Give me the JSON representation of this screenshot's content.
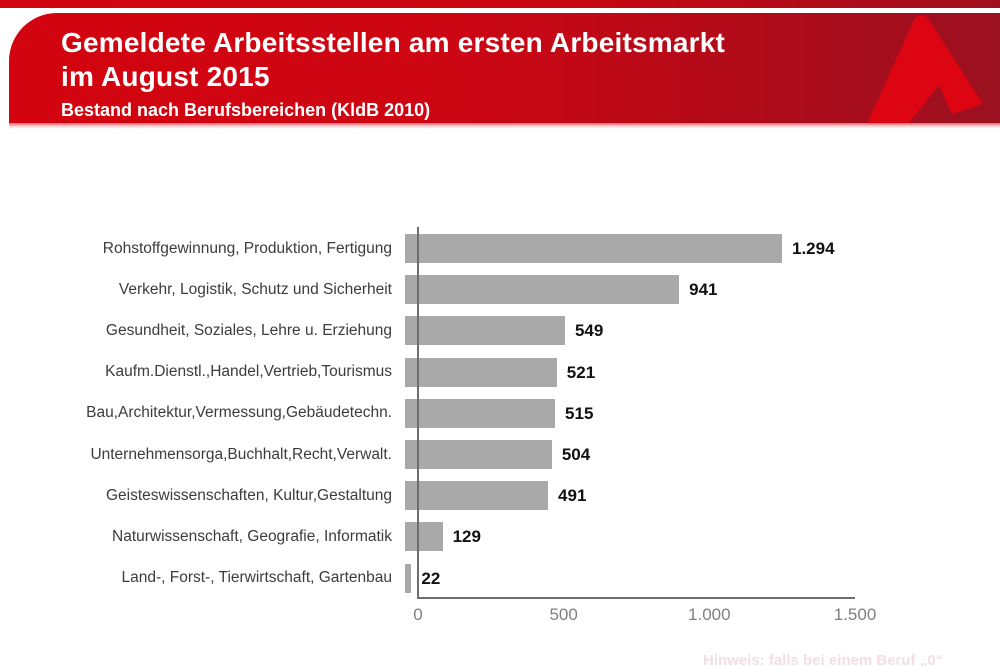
{
  "header": {
    "title_line1": "Gemeldete Arbeitsstellen am ersten Arbeitsmarkt",
    "title_line2": "im August 2015",
    "subtitle": "Bestand nach Berufsbereichen (KldB 2010)"
  },
  "footer_note": "Hinweis: falls bei einem Beruf „0“",
  "colors": {
    "banner_red_left": "#d2040f",
    "banner_red_right": "#9b1020",
    "logo_red": "#dd0512",
    "bar_gray": "#a9a9a9",
    "axis_gray": "#6e6e6e",
    "tick_gray": "#7f7f7f"
  },
  "chart_data": {
    "type": "bar",
    "orientation": "horizontal",
    "title": "Gemeldete Arbeitsstellen am ersten Arbeitsmarkt im August 2015",
    "subtitle": "Bestand nach Berufsbereichen (KldB 2010)",
    "categories": [
      "Rohstoffgewinnung, Produktion, Fertigung",
      "Verkehr, Logistik, Schutz und Sicherheit",
      "Gesundheit, Soziales, Lehre u. Erziehung",
      "Kaufm.Dienstl.,Handel,Vertrieb,Tourismus",
      "Bau,Architektur,Vermessung,Gebäudetechn.",
      "Unternehmensorga,Buchhalt,Recht,Verwalt.",
      "Geisteswissenschaften, Kultur,Gestaltung",
      "Naturwissenschaft, Geografie, Informatik",
      "Land-, Forst-, Tierwirtschaft, Gartenbau"
    ],
    "values": [
      1294,
      941,
      549,
      521,
      515,
      504,
      491,
      129,
      22
    ],
    "value_labels": [
      "1.294",
      "941",
      "549",
      "521",
      "515",
      "504",
      "491",
      "129",
      "22"
    ],
    "xlim": [
      0,
      1500
    ],
    "x_tick_values": [
      0,
      500,
      1000,
      1500
    ],
    "x_tick_labels": [
      "0",
      "500",
      "1.000",
      "1.500"
    ],
    "bar_color": "#a9a9a9",
    "grid": false,
    "legend": false
  }
}
